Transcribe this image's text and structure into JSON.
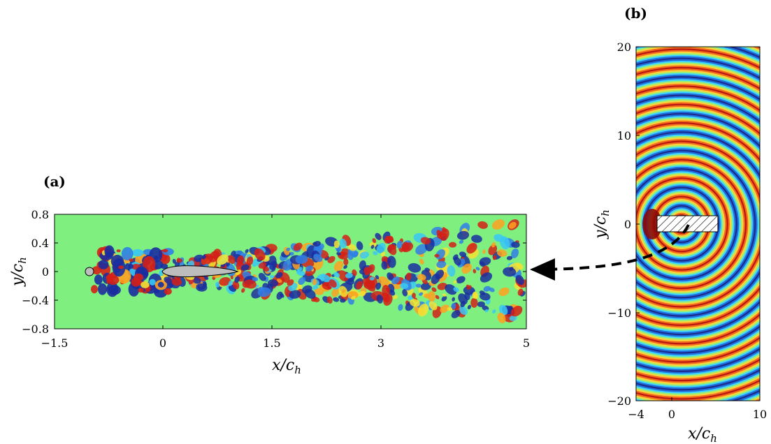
{
  "panels": [
    {
      "label": "(a)",
      "xlabel": "x/c_h",
      "ylabel": "y/c_h",
      "xticks": [
        "−1.5",
        "0",
        "1.5",
        "3",
        "5"
      ],
      "yticks": [
        "0.8",
        "0.4",
        "0",
        "−0.4",
        "−0.8"
      ]
    },
    {
      "label": "(b)",
      "xlabel": "x/c_h",
      "ylabel": "y/c_h",
      "xticks": [
        "−4",
        "0",
        "10"
      ],
      "yticks": [
        "20",
        "10",
        "0",
        "−10",
        "−20"
      ]
    }
  ],
  "colors": {
    "background_field": "#7ff07f",
    "positive": "#d42018",
    "negative": "#1a2ea0",
    "airfoil_fill": "#bdbdbd",
    "wave_palette": [
      "#1c2a8c",
      "#1f6fdc",
      "#3fd3ff",
      "#9ff070",
      "#ffd23a",
      "#f36a1d",
      "#b81612"
    ]
  },
  "chart_data": [
    {
      "type": "heatmap",
      "title": "",
      "xlabel": "x/c_h",
      "ylabel": "y/c_h",
      "xlim": [
        -1.5,
        5
      ],
      "ylim": [
        -0.8,
        0.8
      ],
      "description_free": true
    },
    {
      "type": "heatmap",
      "title": "",
      "xlabel": "x/c_h",
      "ylabel": "y/c_h",
      "xlim": [
        -4,
        10
      ],
      "ylim": [
        -20,
        20
      ]
    }
  ]
}
